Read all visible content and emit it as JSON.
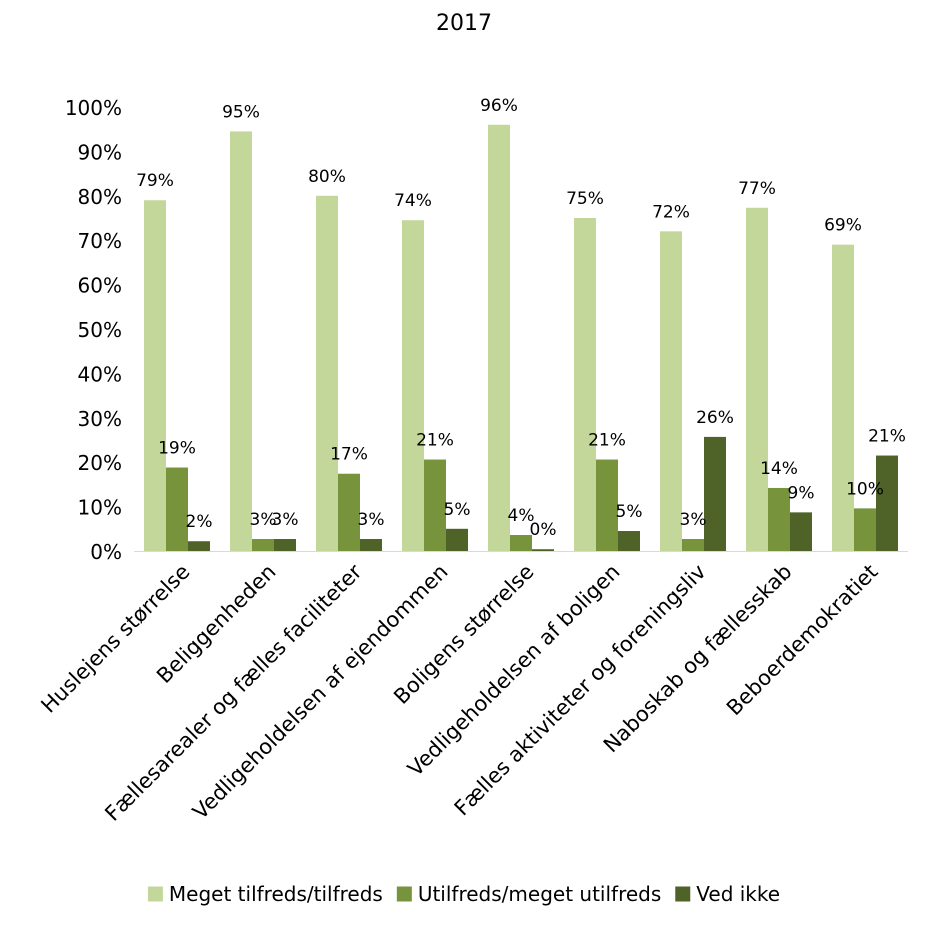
{
  "chart_data": {
    "type": "bar",
    "title": "2017",
    "xlabel": "",
    "ylabel": "",
    "ylim": [
      0,
      100
    ],
    "yticks": [
      "0%",
      "10%",
      "20%",
      "30%",
      "40%",
      "50%",
      "60%",
      "70%",
      "80%",
      "90%",
      "100%"
    ],
    "categories": [
      "Huslejens størrelse",
      "Beliggenheden",
      "Fællesarealer og fælles faciliteter",
      "Vedligeholdelsen af ejendommen",
      "Boligens størrelse",
      "Vedligeholdelsen af boligen",
      "Fælles aktiviteter og foreningsliv",
      "Naboskab og fællesskab",
      "Beboerdemokratiet"
    ],
    "series": [
      {
        "name": "Meget tilfreds/tilfreds",
        "color": "#c4d79b",
        "values": [
          79,
          94.5,
          80,
          74.5,
          96,
          75,
          72,
          77.3,
          69
        ],
        "labels": [
          "79%",
          "95%",
          "80%",
          "74%",
          "96%",
          "75%",
          "72%",
          "77%",
          "69%"
        ]
      },
      {
        "name": "Utilfreds/meget utilfreds",
        "color": "#77933c",
        "values": [
          18.8,
          2.7,
          17.4,
          20.6,
          3.6,
          20.6,
          2.7,
          14.2,
          9.6
        ],
        "labels": [
          "19%",
          "3%",
          "17%",
          "21%",
          "4%",
          "21%",
          "3%",
          "14%",
          "10%"
        ]
      },
      {
        "name": "Ved ikke",
        "color": "#4f6228",
        "values": [
          2.2,
          2.7,
          2.7,
          5,
          0.4,
          4.5,
          25.7,
          8.7,
          21.5
        ],
        "labels": [
          "2%",
          "3%",
          "3%",
          "5%",
          "0%",
          "5%",
          "26%",
          "9%",
          "21%"
        ]
      }
    ],
    "legend_position": "bottom",
    "grid": false
  }
}
